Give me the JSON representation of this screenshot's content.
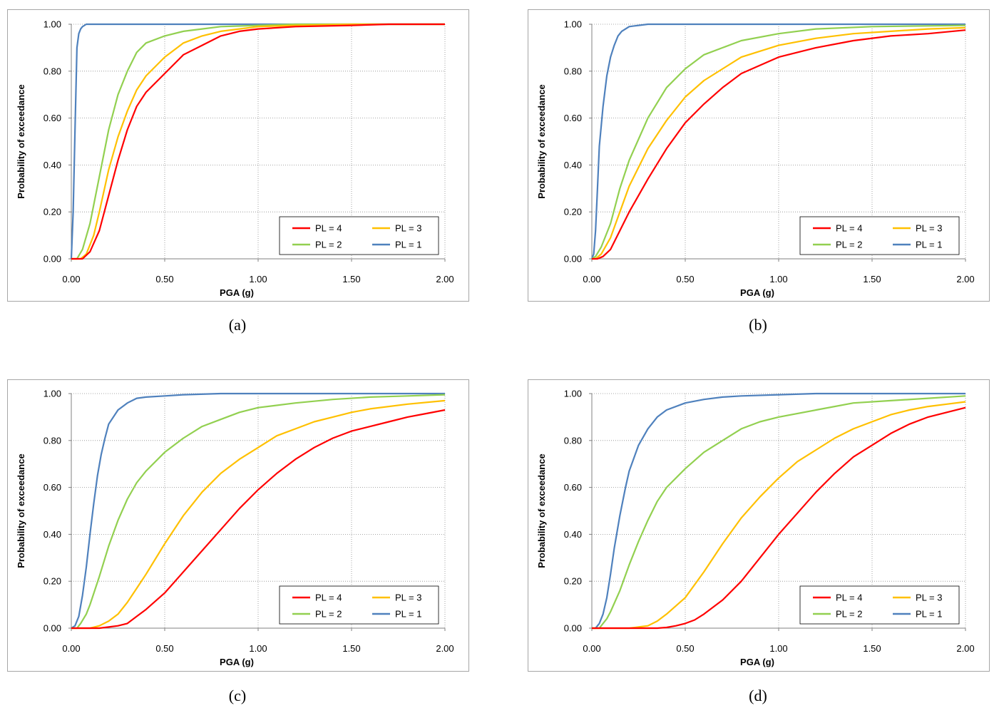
{
  "chart_data": [
    {
      "id": "a",
      "type": "line",
      "caption": "(a)",
      "xlabel": "PGA (g)",
      "ylabel": "Probability of exceedance",
      "xlim": [
        0,
        2
      ],
      "ylim": [
        0,
        1
      ],
      "xticks": [
        "0.00",
        "0.50",
        "1.00",
        "1.50",
        "2.00"
      ],
      "yticks": [
        "0.00",
        "0.20",
        "0.40",
        "0.60",
        "0.80",
        "1.00"
      ],
      "legend_position": "bottom-right",
      "series": [
        {
          "name": "PL = 4",
          "color": "#ff0000",
          "x": [
            0,
            0.06,
            0.1,
            0.15,
            0.2,
            0.25,
            0.3,
            0.35,
            0.4,
            0.5,
            0.6,
            0.7,
            0.8,
            0.9,
            1.0,
            1.2,
            1.5,
            1.7,
            2.0
          ],
          "y": [
            0,
            0,
            0.03,
            0.12,
            0.27,
            0.42,
            0.55,
            0.65,
            0.71,
            0.79,
            0.87,
            0.91,
            0.95,
            0.97,
            0.98,
            0.99,
            0.995,
            1.0,
            1.0
          ]
        },
        {
          "name": "PL = 3",
          "color": "#ffc000",
          "x": [
            0,
            0.05,
            0.08,
            0.12,
            0.15,
            0.2,
            0.25,
            0.3,
            0.35,
            0.4,
            0.5,
            0.6,
            0.7,
            0.8,
            0.9,
            1.0,
            1.2,
            1.5,
            2.0
          ],
          "y": [
            0,
            0,
            0.02,
            0.1,
            0.2,
            0.38,
            0.52,
            0.63,
            0.72,
            0.78,
            0.86,
            0.92,
            0.95,
            0.97,
            0.98,
            0.99,
            0.995,
            1.0,
            1.0
          ]
        },
        {
          "name": "PL = 2",
          "color": "#92d050",
          "x": [
            0,
            0.03,
            0.06,
            0.1,
            0.15,
            0.2,
            0.25,
            0.3,
            0.35,
            0.4,
            0.5,
            0.6,
            0.7,
            0.8,
            1.0,
            1.2,
            2.0
          ],
          "y": [
            0,
            0,
            0.04,
            0.15,
            0.35,
            0.55,
            0.7,
            0.8,
            0.88,
            0.92,
            0.95,
            0.97,
            0.98,
            0.99,
            0.995,
            1.0,
            1.0
          ]
        },
        {
          "name": "PL = 1",
          "color": "#4f81bd",
          "x": [
            0,
            0.01,
            0.02,
            0.03,
            0.04,
            0.05,
            0.06,
            0.08,
            0.1,
            0.2,
            2.0
          ],
          "y": [
            0,
            0.2,
            0.55,
            0.9,
            0.96,
            0.98,
            0.99,
            1.0,
            1.0,
            1.0,
            1.0
          ]
        }
      ]
    },
    {
      "id": "b",
      "type": "line",
      "caption": "(b)",
      "xlabel": "PGA (g)",
      "ylabel": "Probability of exceedance",
      "xlim": [
        0,
        2
      ],
      "ylim": [
        0,
        1
      ],
      "xticks": [
        "0.00",
        "0.50",
        "1.00",
        "1.50",
        "2.00"
      ],
      "yticks": [
        "0.00",
        "0.20",
        "0.40",
        "0.60",
        "0.80",
        "1.00"
      ],
      "legend_position": "bottom-right",
      "series": [
        {
          "name": "PL = 4",
          "color": "#ff0000",
          "x": [
            0,
            0.03,
            0.06,
            0.1,
            0.15,
            0.2,
            0.3,
            0.4,
            0.5,
            0.6,
            0.7,
            0.8,
            1.0,
            1.2,
            1.4,
            1.6,
            1.8,
            2.0
          ],
          "y": [
            0,
            0,
            0.01,
            0.04,
            0.12,
            0.2,
            0.34,
            0.47,
            0.58,
            0.66,
            0.73,
            0.79,
            0.86,
            0.9,
            0.93,
            0.95,
            0.96,
            0.975
          ]
        },
        {
          "name": "PL = 3",
          "color": "#ffc000",
          "x": [
            0,
            0.02,
            0.05,
            0.1,
            0.15,
            0.2,
            0.3,
            0.4,
            0.5,
            0.6,
            0.7,
            0.8,
            1.0,
            1.2,
            1.4,
            1.6,
            1.8,
            2.0
          ],
          "y": [
            0,
            0,
            0.02,
            0.09,
            0.2,
            0.31,
            0.47,
            0.59,
            0.69,
            0.76,
            0.81,
            0.86,
            0.91,
            0.94,
            0.96,
            0.97,
            0.98,
            0.985
          ]
        },
        {
          "name": "PL = 2",
          "color": "#92d050",
          "x": [
            0,
            0.02,
            0.05,
            0.1,
            0.15,
            0.2,
            0.3,
            0.4,
            0.5,
            0.6,
            0.7,
            0.8,
            1.0,
            1.2,
            1.5,
            2.0
          ],
          "y": [
            0,
            0.01,
            0.05,
            0.15,
            0.3,
            0.42,
            0.6,
            0.73,
            0.81,
            0.87,
            0.9,
            0.93,
            0.96,
            0.98,
            0.99,
            0.995
          ]
        },
        {
          "name": "PL = 1",
          "color": "#4f81bd",
          "x": [
            0,
            0.01,
            0.02,
            0.03,
            0.04,
            0.06,
            0.08,
            0.1,
            0.12,
            0.14,
            0.16,
            0.2,
            0.25,
            0.3,
            0.4,
            2.0
          ],
          "y": [
            0,
            0.02,
            0.12,
            0.3,
            0.48,
            0.65,
            0.78,
            0.86,
            0.91,
            0.95,
            0.97,
            0.99,
            0.995,
            1.0,
            1.0,
            1.0
          ]
        }
      ]
    },
    {
      "id": "c",
      "type": "line",
      "caption": "(c)",
      "xlabel": "PGA (g)",
      "ylabel": "Probability of exceedance",
      "xlim": [
        0,
        2
      ],
      "ylim": [
        0,
        1
      ],
      "xticks": [
        "0.00",
        "0.50",
        "1.00",
        "1.50",
        "2.00"
      ],
      "yticks": [
        "0.00",
        "0.20",
        "0.40",
        "0.60",
        "0.80",
        "1.00"
      ],
      "legend_position": "bottom-right",
      "series": [
        {
          "name": "PL = 4",
          "color": "#ff0000",
          "x": [
            0,
            0.15,
            0.2,
            0.25,
            0.3,
            0.35,
            0.4,
            0.5,
            0.6,
            0.7,
            0.8,
            0.9,
            1.0,
            1.1,
            1.2,
            1.3,
            1.4,
            1.5,
            1.6,
            1.7,
            1.8,
            1.9,
            2.0
          ],
          "y": [
            0,
            0,
            0.005,
            0.01,
            0.02,
            0.05,
            0.08,
            0.15,
            0.24,
            0.33,
            0.42,
            0.51,
            0.59,
            0.66,
            0.72,
            0.77,
            0.81,
            0.84,
            0.86,
            0.88,
            0.9,
            0.915,
            0.93
          ]
        },
        {
          "name": "PL = 3",
          "color": "#ffc000",
          "x": [
            0,
            0.1,
            0.15,
            0.2,
            0.25,
            0.3,
            0.35,
            0.4,
            0.5,
            0.6,
            0.7,
            0.8,
            0.9,
            1.0,
            1.1,
            1.2,
            1.3,
            1.4,
            1.5,
            1.6,
            1.8,
            2.0
          ],
          "y": [
            0,
            0,
            0.01,
            0.03,
            0.06,
            0.11,
            0.17,
            0.23,
            0.36,
            0.48,
            0.58,
            0.66,
            0.72,
            0.77,
            0.82,
            0.85,
            0.88,
            0.9,
            0.92,
            0.935,
            0.955,
            0.97
          ]
        },
        {
          "name": "PL = 2",
          "color": "#92d050",
          "x": [
            0,
            0.03,
            0.05,
            0.08,
            0.1,
            0.15,
            0.2,
            0.25,
            0.3,
            0.35,
            0.4,
            0.5,
            0.6,
            0.7,
            0.8,
            0.9,
            1.0,
            1.2,
            1.4,
            1.6,
            1.8,
            2.0
          ],
          "y": [
            0,
            0,
            0.02,
            0.06,
            0.1,
            0.22,
            0.35,
            0.46,
            0.55,
            0.62,
            0.67,
            0.75,
            0.81,
            0.86,
            0.89,
            0.92,
            0.94,
            0.96,
            0.975,
            0.985,
            0.99,
            0.995
          ]
        },
        {
          "name": "PL = 1",
          "color": "#4f81bd",
          "x": [
            0,
            0.02,
            0.04,
            0.06,
            0.08,
            0.1,
            0.12,
            0.14,
            0.16,
            0.18,
            0.2,
            0.25,
            0.3,
            0.35,
            0.4,
            0.5,
            0.6,
            0.8,
            2.0
          ],
          "y": [
            0,
            0.01,
            0.05,
            0.14,
            0.26,
            0.4,
            0.53,
            0.65,
            0.74,
            0.81,
            0.87,
            0.93,
            0.96,
            0.98,
            0.985,
            0.99,
            0.995,
            1.0,
            1.0
          ]
        }
      ]
    },
    {
      "id": "d",
      "type": "line",
      "caption": "(d)",
      "xlabel": "PGA (g)",
      "ylabel": "Probability of exceedance",
      "xlim": [
        0,
        2
      ],
      "ylim": [
        0,
        1
      ],
      "xticks": [
        "0.00",
        "0.50",
        "1.00",
        "1.50",
        "2.00"
      ],
      "yticks": [
        "0.00",
        "0.20",
        "0.40",
        "0.60",
        "0.80",
        "1.00"
      ],
      "legend_position": "bottom-right",
      "series": [
        {
          "name": "PL = 4",
          "color": "#ff0000",
          "x": [
            0,
            0.35,
            0.4,
            0.45,
            0.5,
            0.55,
            0.6,
            0.7,
            0.8,
            0.9,
            1.0,
            1.1,
            1.2,
            1.3,
            1.4,
            1.5,
            1.6,
            1.7,
            1.8,
            1.9,
            2.0
          ],
          "y": [
            0,
            0,
            0.003,
            0.01,
            0.02,
            0.035,
            0.06,
            0.12,
            0.2,
            0.3,
            0.4,
            0.49,
            0.58,
            0.66,
            0.73,
            0.78,
            0.83,
            0.87,
            0.9,
            0.92,
            0.94
          ]
        },
        {
          "name": "PL = 3",
          "color": "#ffc000",
          "x": [
            0,
            0.2,
            0.25,
            0.3,
            0.35,
            0.4,
            0.5,
            0.6,
            0.7,
            0.8,
            0.9,
            1.0,
            1.1,
            1.2,
            1.3,
            1.4,
            1.5,
            1.6,
            1.7,
            1.8,
            1.9,
            2.0
          ],
          "y": [
            0,
            0,
            0.005,
            0.01,
            0.03,
            0.06,
            0.13,
            0.24,
            0.36,
            0.47,
            0.56,
            0.64,
            0.71,
            0.76,
            0.81,
            0.85,
            0.88,
            0.91,
            0.93,
            0.945,
            0.955,
            0.965
          ]
        },
        {
          "name": "PL = 2",
          "color": "#92d050",
          "x": [
            0,
            0.04,
            0.06,
            0.08,
            0.1,
            0.15,
            0.2,
            0.25,
            0.3,
            0.35,
            0.4,
            0.5,
            0.6,
            0.7,
            0.8,
            0.9,
            1.0,
            1.2,
            1.4,
            1.6,
            1.8,
            2.0
          ],
          "y": [
            0,
            0,
            0.02,
            0.04,
            0.07,
            0.16,
            0.27,
            0.37,
            0.46,
            0.54,
            0.6,
            0.68,
            0.75,
            0.8,
            0.85,
            0.88,
            0.9,
            0.93,
            0.96,
            0.97,
            0.98,
            0.99
          ]
        },
        {
          "name": "PL = 1",
          "color": "#4f81bd",
          "x": [
            0,
            0.02,
            0.04,
            0.06,
            0.08,
            0.1,
            0.12,
            0.15,
            0.18,
            0.2,
            0.25,
            0.3,
            0.35,
            0.4,
            0.5,
            0.6,
            0.7,
            0.8,
            1.0,
            1.2,
            2.0
          ],
          "y": [
            0,
            0,
            0.02,
            0.06,
            0.13,
            0.23,
            0.34,
            0.48,
            0.6,
            0.67,
            0.78,
            0.85,
            0.9,
            0.93,
            0.96,
            0.975,
            0.985,
            0.99,
            0.995,
            1.0,
            1.0
          ]
        }
      ]
    }
  ]
}
